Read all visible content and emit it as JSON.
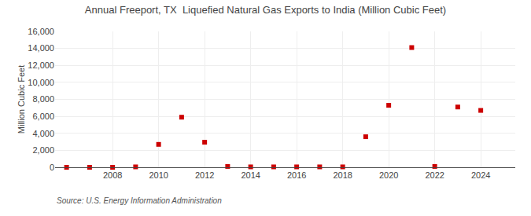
{
  "chart_data": {
    "type": "scatter",
    "title": "Annual Freeport, TX  Liquefied Natural Gas Exports to India (Million Cubic Feet)",
    "ylabel": "Million Cubic Feet",
    "annotations": [
      "Source: U.S. Energy Information Administration"
    ],
    "x": [
      2006,
      2007,
      2008,
      2009,
      2010,
      2011,
      2012,
      2013,
      2014,
      2015,
      2016,
      2017,
      2018,
      2019,
      2020,
      2021,
      2022,
      2023,
      2024
    ],
    "values": [
      0,
      0,
      0,
      50,
      2700,
      5900,
      2950,
      100,
      50,
      50,
      50,
      50,
      50,
      3600,
      7300,
      14100,
      100,
      7100,
      6700
    ],
    "color": "#cc0000",
    "marker": "square",
    "xlim": [
      2005.5,
      2025.5
    ],
    "xticks": [
      2008,
      2010,
      2012,
      2014,
      2016,
      2018,
      2020,
      2022,
      2024
    ],
    "ylim": [
      0,
      16000
    ],
    "yticks": [
      0,
      {
        "value": 2000,
        "label": "2,000"
      },
      {
        "value": 4000,
        "label": "4,000"
      },
      {
        "value": 6000,
        "label": "6,000"
      },
      {
        "value": 8000,
        "label": "8,000"
      },
      {
        "value": 10000,
        "label": "10,000"
      },
      {
        "value": 12000,
        "label": "12,000"
      },
      {
        "value": 14000,
        "label": "14,000"
      },
      {
        "value": 16000,
        "label": "16,000"
      }
    ],
    "grid": true
  }
}
